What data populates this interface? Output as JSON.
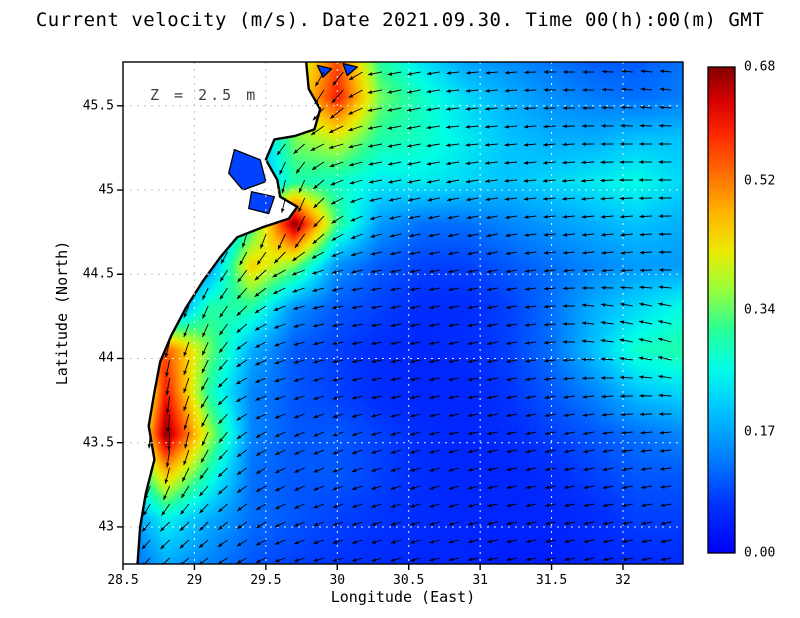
{
  "figure": {
    "title": "Current velocity (m/s). Date 2021.09.30. Time 00(h):00(m) GMT",
    "annotation": "Z = 2.5 m",
    "xlabel": "Longitude (East)",
    "ylabel": "Latitude (North)",
    "units": "m/s",
    "date": "2021.09.30",
    "time": "00(h):00(m) GMT"
  },
  "chart_data": {
    "type": "heatmap",
    "subtype": "current-velocity-field-with-vector-arrows",
    "title": "Current velocity (m/s). Date 2021.09.30. Time 00(h):00(m) GMT",
    "xlabel": "Longitude (East)",
    "ylabel": "Latitude (North)",
    "xlim": [
      28.5,
      32.42
    ],
    "ylim": [
      42.78,
      45.76
    ],
    "x_ticks": [
      28.5,
      29,
      29.5,
      30,
      30.5,
      31,
      31.5,
      32
    ],
    "x_tick_labels": [
      "28.5",
      "29",
      "29.5",
      "30",
      "30.5",
      "31",
      "31.5",
      "32"
    ],
    "y_ticks": [
      43,
      43.5,
      44,
      44.5,
      45,
      45.5
    ],
    "y_tick_labels": [
      "43",
      "43.5",
      "44",
      "44.5",
      "45",
      "45.5"
    ],
    "colorbar": {
      "position": "right",
      "vmin": 0,
      "vmax": 0.68,
      "tick_values": [
        0,
        0.17,
        0.34,
        0.52,
        0.68
      ],
      "tick_labels": [
        "0.00",
        "0.17",
        "0.34",
        "0.52",
        "0.68"
      ],
      "colormap": "jet"
    },
    "colormap_stops": [
      {
        "t": 0.0,
        "c": "#0000fa"
      },
      {
        "t": 0.1,
        "c": "#0032ff"
      },
      {
        "t": 0.2,
        "c": "#0082ff"
      },
      {
        "t": 0.3,
        "c": "#00c8ff"
      },
      {
        "t": 0.38,
        "c": "#00ffe6"
      },
      {
        "t": 0.46,
        "c": "#28ff96"
      },
      {
        "t": 0.54,
        "c": "#96ff3c"
      },
      {
        "t": 0.62,
        "c": "#ebeb00"
      },
      {
        "t": 0.7,
        "c": "#ffb400"
      },
      {
        "t": 0.78,
        "c": "#ff6e00"
      },
      {
        "t": 0.86,
        "c": "#ff2800"
      },
      {
        "t": 0.93,
        "c": "#d70000"
      },
      {
        "t": 1.0,
        "c": "#840000"
      }
    ],
    "grid": {
      "lon_start": 28.5,
      "lon_step": 0.3,
      "lon_count": 14,
      "lat_start": 45.8,
      "lat_step": -0.25,
      "lat_count": 13
    },
    "magnitude": [
      [
        0,
        0,
        0,
        0,
        0.35,
        0.55,
        0.3,
        0.22,
        0.16,
        0.14,
        0.12,
        0.1,
        0.1,
        0.12
      ],
      [
        0,
        0,
        0,
        0,
        0.4,
        0.6,
        0.35,
        0.28,
        0.22,
        0.18,
        0.15,
        0.13,
        0.12,
        0.13
      ],
      [
        0,
        0,
        0,
        0.15,
        0.35,
        0.4,
        0.3,
        0.28,
        0.24,
        0.2,
        0.18,
        0.18,
        0.2,
        0.2
      ],
      [
        0,
        0,
        0,
        0.15,
        0.3,
        0.28,
        0.24,
        0.24,
        0.22,
        0.2,
        0.22,
        0.24,
        0.26,
        0.22
      ],
      [
        0,
        0,
        0.1,
        0.3,
        0.68,
        0.32,
        0.16,
        0.12,
        0.12,
        0.14,
        0.16,
        0.18,
        0.2,
        0.18
      ],
      [
        0,
        0,
        0.15,
        0.45,
        0.35,
        0.15,
        0.1,
        0.08,
        0.08,
        0.1,
        0.12,
        0.14,
        0.16,
        0.16
      ],
      [
        0,
        0.1,
        0.3,
        0.3,
        0.15,
        0.1,
        0.08,
        0.06,
        0.06,
        0.08,
        0.12,
        0.18,
        0.22,
        0.26
      ],
      [
        0,
        0.55,
        0.35,
        0.18,
        0.1,
        0.08,
        0.06,
        0.05,
        0.06,
        0.08,
        0.12,
        0.2,
        0.28,
        0.3
      ],
      [
        0.1,
        0.6,
        0.3,
        0.14,
        0.1,
        0.08,
        0.06,
        0.05,
        0.05,
        0.07,
        0.1,
        0.14,
        0.2,
        0.22
      ],
      [
        0.15,
        0.68,
        0.38,
        0.14,
        0.1,
        0.1,
        0.08,
        0.06,
        0.05,
        0.06,
        0.08,
        0.1,
        0.12,
        0.14
      ],
      [
        0.18,
        0.45,
        0.28,
        0.12,
        0.1,
        0.1,
        0.08,
        0.06,
        0.05,
        0.05,
        0.06,
        0.08,
        0.1,
        0.1
      ],
      [
        0.12,
        0.25,
        0.18,
        0.12,
        0.1,
        0.08,
        0.07,
        0.06,
        0.05,
        0.05,
        0.05,
        0.06,
        0.08,
        0.08
      ],
      [
        0.1,
        0.18,
        0.14,
        0.1,
        0.08,
        0.07,
        0.06,
        0.05,
        0.05,
        0.04,
        0.04,
        0.05,
        0.06,
        0.06
      ]
    ],
    "u": [
      [
        0,
        0,
        0,
        0,
        -0.5,
        -0.5,
        -1,
        -1,
        -1,
        -1,
        -1,
        -1,
        -1,
        -1
      ],
      [
        0,
        0,
        0,
        0,
        -0.5,
        -0.6,
        -1,
        -1,
        -1,
        -1,
        -1,
        -1,
        -1,
        -1
      ],
      [
        0,
        0,
        0,
        -0.4,
        -0.7,
        -1,
        -1,
        -1,
        -1,
        -1,
        -1,
        -1,
        -1,
        -1
      ],
      [
        0,
        0,
        0,
        -0.3,
        -0.2,
        -0.9,
        -1,
        -1,
        -1,
        -1,
        -1,
        -1,
        -1,
        -1
      ],
      [
        0,
        0,
        0,
        -0.2,
        -0.3,
        -0.8,
        -1,
        -1,
        -1,
        -1,
        -1,
        -1,
        -1,
        -1
      ],
      [
        0,
        0,
        -0.5,
        -0.6,
        -0.9,
        -1,
        -1,
        -1,
        -1,
        -1,
        -1,
        -1,
        -1,
        -1
      ],
      [
        0,
        -0.4,
        -0.4,
        -0.7,
        -1,
        -1,
        -1,
        -1,
        -1,
        -1,
        -1,
        -1,
        -1,
        -1
      ],
      [
        0,
        -0.2,
        -0.4,
        -0.8,
        -1,
        -1,
        -1,
        -1,
        -1,
        -1,
        -1,
        -1,
        -1,
        -1
      ],
      [
        -0.1,
        -0.1,
        -0.5,
        -0.9,
        -1,
        -1,
        -1,
        -1,
        -1,
        -1,
        -1,
        -1,
        -1,
        -1
      ],
      [
        -0.2,
        0,
        -0.4,
        -0.8,
        -0.9,
        -1,
        -1,
        -1,
        -1,
        -1,
        -1,
        -1,
        -1,
        -1
      ],
      [
        -0.3,
        -0.3,
        -0.6,
        -0.8,
        -0.9,
        -1,
        -1,
        -1,
        -1,
        -1,
        -1,
        -1,
        -1,
        -1
      ],
      [
        -0.5,
        -0.6,
        -0.6,
        -0.7,
        -0.9,
        -0.9,
        -1,
        -1,
        -1,
        -1,
        -1,
        -1,
        -1,
        -1
      ],
      [
        -0.6,
        -0.6,
        -0.7,
        -0.8,
        -0.9,
        -1,
        -1,
        -1,
        -1,
        -1,
        -1,
        -1,
        -1,
        -1
      ]
    ],
    "v": [
      [
        0,
        0,
        0,
        0,
        -0.9,
        -0.9,
        -0.2,
        -0.2,
        -0.1,
        -0.1,
        0,
        0,
        0.1,
        0.1
      ],
      [
        0,
        0,
        0,
        0,
        -0.9,
        -0.8,
        -0.2,
        -0.2,
        -0.1,
        -0.1,
        0,
        0,
        0.1,
        0.1
      ],
      [
        0,
        0,
        0,
        -1,
        -0.7,
        -0.3,
        -0.2,
        -0.2,
        -0.1,
        -0.1,
        -0.1,
        0,
        0,
        0
      ],
      [
        0,
        0,
        0,
        -1,
        -1,
        -0.4,
        -0.2,
        -0.2,
        -0.2,
        -0.1,
        -0.1,
        -0.1,
        0,
        0
      ],
      [
        0,
        0,
        0,
        -1,
        -1,
        -0.6,
        -0.3,
        -0.2,
        -0.2,
        -0.2,
        -0.1,
        -0.1,
        -0.1,
        0
      ],
      [
        0,
        0,
        -0.9,
        -0.8,
        -0.4,
        -0.3,
        -0.2,
        -0.2,
        -0.2,
        -0.2,
        -0.1,
        -0.1,
        -0.1,
        0
      ],
      [
        0,
        -1,
        -0.9,
        -0.6,
        -0.3,
        -0.2,
        -0.2,
        -0.2,
        -0.2,
        -0.2,
        -0.1,
        0.1,
        0.2,
        0.2
      ],
      [
        0,
        -1,
        -0.9,
        -0.5,
        -0.3,
        -0.2,
        -0.2,
        -0.2,
        -0.2,
        -0.2,
        -0.1,
        0.1,
        0.2,
        0.3
      ],
      [
        -1,
        -1,
        -0.8,
        -0.4,
        -0.3,
        -0.3,
        -0.2,
        -0.2,
        -0.2,
        -0.2,
        -0.2,
        -0.1,
        0,
        0.1
      ],
      [
        -1,
        -1,
        -0.9,
        -0.5,
        -0.4,
        -0.4,
        -0.3,
        -0.3,
        -0.2,
        -0.2,
        -0.2,
        -0.2,
        -0.1,
        -0.1
      ],
      [
        -1,
        -1,
        -0.7,
        -0.5,
        -0.4,
        -0.4,
        -0.3,
        -0.3,
        -0.3,
        -0.2,
        -0.2,
        -0.2,
        -0.2,
        -0.1
      ],
      [
        -0.8,
        -0.6,
        -0.6,
        -0.5,
        -0.4,
        -0.3,
        -0.3,
        -0.3,
        -0.3,
        -0.2,
        -0.2,
        -0.2,
        -0.2,
        -0.2
      ],
      [
        -0.6,
        -0.6,
        -0.5,
        -0.4,
        -0.3,
        -0.3,
        -0.3,
        -0.3,
        -0.2,
        -0.2,
        -0.2,
        -0.2,
        -0.2,
        -0.2
      ]
    ],
    "coastline": [
      [
        29.78,
        45.78
      ],
      [
        29.8,
        45.6
      ],
      [
        29.88,
        45.48
      ],
      [
        29.84,
        45.36
      ],
      [
        29.7,
        45.32
      ],
      [
        29.56,
        45.3
      ],
      [
        29.5,
        45.18
      ],
      [
        29.58,
        45.06
      ],
      [
        29.6,
        44.96
      ],
      [
        29.72,
        44.9
      ],
      [
        29.66,
        44.83
      ],
      [
        29.48,
        44.78
      ],
      [
        29.3,
        44.72
      ],
      [
        29.18,
        44.6
      ],
      [
        29.06,
        44.46
      ],
      [
        28.94,
        44.3
      ],
      [
        28.84,
        44.14
      ],
      [
        28.76,
        43.98
      ],
      [
        28.72,
        43.8
      ],
      [
        28.68,
        43.6
      ],
      [
        28.72,
        43.4
      ],
      [
        28.66,
        43.2
      ],
      [
        28.62,
        43.0
      ],
      [
        28.6,
        42.76
      ]
    ],
    "lagoons": [
      [
        [
          29.28,
          45.24
        ],
        [
          29.46,
          45.18
        ],
        [
          29.5,
          45.05
        ],
        [
          29.34,
          45.0
        ],
        [
          29.24,
          45.1
        ]
      ],
      [
        [
          29.4,
          44.99
        ],
        [
          29.56,
          44.96
        ],
        [
          29.52,
          44.86
        ],
        [
          29.38,
          44.89
        ]
      ]
    ],
    "islets": [
      [
        [
          29.86,
          45.74
        ],
        [
          29.96,
          45.72
        ],
        [
          29.9,
          45.67
        ]
      ],
      [
        [
          30.04,
          45.75
        ],
        [
          30.14,
          45.73
        ],
        [
          30.07,
          45.68
        ]
      ]
    ],
    "colors": {
      "land": "#ffffff",
      "coast": "#000000",
      "arrows": "#000000",
      "grid_sea": "#ffffff",
      "grid_land": "#c4c4c4",
      "frame": "#000000"
    }
  }
}
